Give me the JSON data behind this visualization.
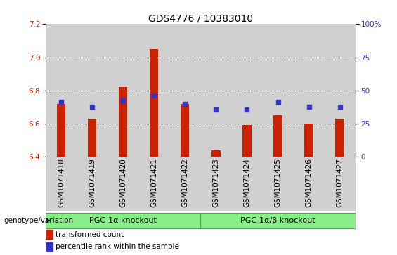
{
  "title": "GDS4776 / 10383010",
  "samples": [
    "GSM1071418",
    "GSM1071419",
    "GSM1071420",
    "GSM1071421",
    "GSM1071422",
    "GSM1071423",
    "GSM1071424",
    "GSM1071425",
    "GSM1071426",
    "GSM1071427"
  ],
  "bar_values": [
    6.72,
    6.63,
    6.82,
    7.05,
    6.72,
    6.44,
    6.59,
    6.65,
    6.6,
    6.63
  ],
  "dot_values_left": [
    6.73,
    6.7,
    6.74,
    6.77,
    6.72,
    6.685,
    6.685,
    6.73,
    6.7,
    6.7
  ],
  "ylim_left": [
    6.4,
    7.2
  ],
  "ylim_right": [
    0,
    100
  ],
  "yticks_left": [
    6.4,
    6.6,
    6.8,
    7.0,
    7.2
  ],
  "yticks_right": [
    0,
    25,
    50,
    75,
    100
  ],
  "bar_color": "#cc2200",
  "dot_color": "#3333cc",
  "bar_bottom": 6.4,
  "col_bg": "#d0d0d0",
  "plot_bg": "#ffffff",
  "group1_label": "PGC-1α knockout",
  "group2_label": "PGC-1α/β knockout",
  "group_color": "#88ee88",
  "group_edge": "#44aa44",
  "genotype_label": "genotype/variation",
  "legend_items": [
    {
      "color": "#cc2200",
      "label": "transformed count"
    },
    {
      "color": "#3333cc",
      "label": "percentile rank within the sample"
    }
  ],
  "title_fontsize": 10,
  "tick_fontsize": 7.5,
  "grid_lines": [
    6.6,
    6.8,
    7.0
  ]
}
